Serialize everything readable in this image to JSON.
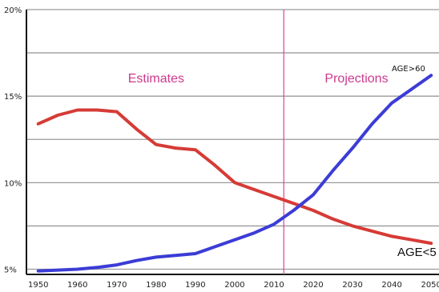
{
  "chart_data": {
    "type": "line",
    "title": "",
    "xlabel": "",
    "ylabel": "",
    "xlim": [
      1947,
      2052
    ],
    "ylim": [
      4.7,
      20
    ],
    "x_ticks": [
      "1950",
      "1960",
      "1970",
      "1980",
      "1990",
      "2000",
      "2010",
      "2020",
      "2030",
      "2040",
      "2050"
    ],
    "y_ticks": [
      {
        "value": 20,
        "label": "20%"
      },
      {
        "value": 15,
        "label": "15%"
      },
      {
        "value": 10,
        "label": "10%"
      },
      {
        "value": 5,
        "label": "5%"
      }
    ],
    "y_gridlines": [
      20,
      17.5,
      15,
      12.5,
      10,
      7.5,
      5
    ],
    "grid": true,
    "divider": {
      "x": 2012.5,
      "color": "#d9468f"
    },
    "regions": [
      {
        "label": "Estimates",
        "x": 1980
      },
      {
        "label": "Projections",
        "x": 2031
      }
    ],
    "series": [
      {
        "name": "AGE<5",
        "color": "#d63b36",
        "x": [
          1950,
          1955,
          1960,
          1965,
          1970,
          1975,
          1980,
          1985,
          1990,
          1995,
          2000,
          2005,
          2010,
          2015,
          2020,
          2025,
          2030,
          2035,
          2040,
          2045,
          2050
        ],
        "values": [
          13.4,
          13.9,
          14.2,
          14.2,
          14.1,
          13.1,
          12.2,
          12.0,
          11.9,
          11.0,
          10.0,
          9.6,
          9.2,
          8.8,
          8.4,
          7.9,
          7.5,
          7.2,
          6.9,
          6.7,
          6.5
        ]
      },
      {
        "name": "AGE>60",
        "color": "#3c3cd6",
        "x": [
          1950,
          1955,
          1960,
          1965,
          1970,
          1975,
          1980,
          1985,
          1990,
          1995,
          2000,
          2005,
          2010,
          2015,
          2020,
          2025,
          2030,
          2035,
          2040,
          2045,
          2050
        ],
        "values": [
          4.9,
          4.95,
          5.0,
          5.1,
          5.25,
          5.5,
          5.7,
          5.8,
          5.9,
          6.3,
          6.7,
          7.1,
          7.6,
          8.4,
          9.3,
          10.7,
          12.0,
          13.4,
          14.6,
          15.4,
          16.2
        ]
      }
    ]
  }
}
